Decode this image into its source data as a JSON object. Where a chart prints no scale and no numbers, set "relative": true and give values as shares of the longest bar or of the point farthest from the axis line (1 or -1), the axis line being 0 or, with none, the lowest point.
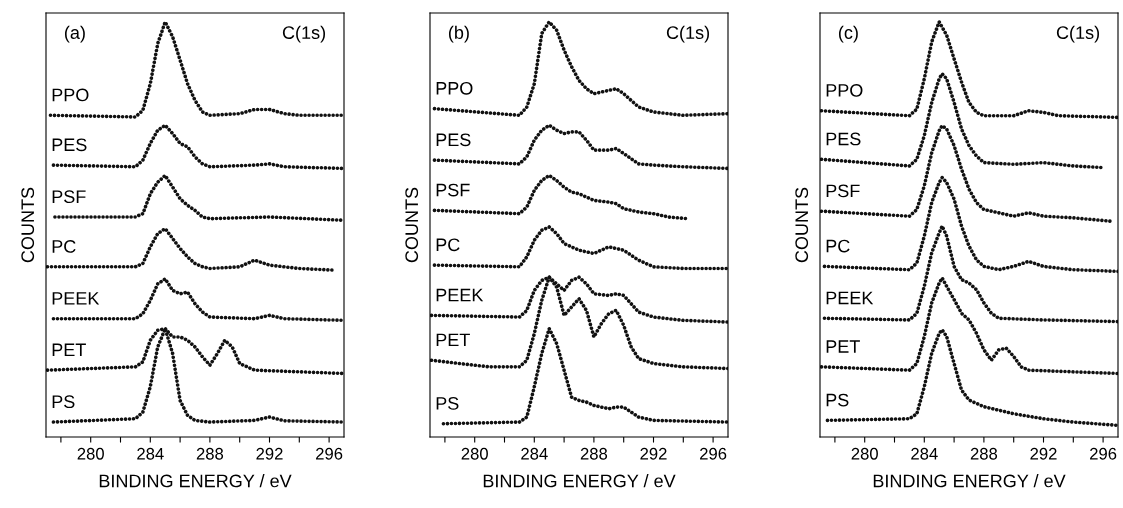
{
  "chart_data": [
    {
      "type": "line",
      "relative": true,
      "xlabel": "BINDING ENERGY / eV",
      "ylabel": "COUNTS",
      "annotations": [
        "(a)",
        "C(1s)"
      ],
      "xlim": [
        277,
        297
      ],
      "xticks": [
        {
          "value": 278,
          "label": null
        },
        280,
        {
          "value": 282,
          "label": null
        },
        284,
        {
          "value": 286,
          "label": null
        },
        288,
        {
          "value": 290,
          "label": null
        },
        292,
        {
          "value": 294,
          "label": null
        },
        296
      ],
      "line_style": "dotted",
      "legend": false,
      "grid": false,
      "tick_labels": "x",
      "series": [
        {
          "name": "PPO",
          "color": "#111111",
          "x": [
            277.3,
            283,
            283.5,
            284,
            284.5,
            285,
            285.5,
            286,
            286.5,
            287,
            287.5,
            288,
            290,
            291,
            292,
            293,
            294,
            297
          ],
          "values": [
            0.775,
            0.771,
            0.787,
            0.851,
            0.948,
            1.0,
            0.964,
            0.908,
            0.851,
            0.811,
            0.783,
            0.775,
            0.779,
            0.789,
            0.789,
            0.779,
            0.775,
            0.775
          ]
        },
        {
          "name": "PES",
          "color": "#111111",
          "x": [
            277.5,
            283,
            283.5,
            284,
            284.5,
            285,
            285.5,
            286,
            286.5,
            287,
            287.5,
            288,
            291,
            292,
            293,
            297
          ],
          "values": [
            0.655,
            0.651,
            0.667,
            0.707,
            0.739,
            0.751,
            0.731,
            0.707,
            0.699,
            0.675,
            0.658,
            0.651,
            0.655,
            0.658,
            0.651,
            0.647
          ]
        },
        {
          "name": "PSF",
          "color": "#111111",
          "x": [
            277.6,
            283,
            283.5,
            284,
            284.5,
            285,
            285.5,
            286,
            286.5,
            287,
            287.5,
            288,
            292,
            297
          ],
          "values": [
            0.53,
            0.53,
            0.538,
            0.586,
            0.614,
            0.63,
            0.602,
            0.574,
            0.558,
            0.546,
            0.53,
            0.526,
            0.53,
            0.522
          ]
        },
        {
          "name": "PC",
          "color": "#111111",
          "x": [
            277.1,
            283,
            283.5,
            284,
            284.5,
            285,
            285.5,
            286,
            286.5,
            287,
            287.5,
            288,
            290,
            291,
            292,
            294,
            296.3
          ],
          "values": [
            0.41,
            0.41,
            0.418,
            0.458,
            0.49,
            0.502,
            0.478,
            0.454,
            0.434,
            0.418,
            0.41,
            0.406,
            0.41,
            0.426,
            0.414,
            0.406,
            0.402
          ]
        },
        {
          "name": "PEEK",
          "color": "#111111",
          "x": [
            277.5,
            283,
            283.5,
            284,
            284.5,
            285,
            285.5,
            286,
            286.5,
            287,
            287.5,
            288,
            291,
            292,
            293,
            297
          ],
          "values": [
            0.285,
            0.285,
            0.297,
            0.329,
            0.369,
            0.381,
            0.353,
            0.345,
            0.349,
            0.321,
            0.301,
            0.289,
            0.285,
            0.293,
            0.285,
            0.281
          ]
        },
        {
          "name": "PET",
          "color": "#111111",
          "x": [
            277.1,
            283,
            283.5,
            284,
            284.5,
            285,
            285.5,
            286,
            286.5,
            287,
            287.5,
            288,
            288.5,
            289,
            289.5,
            290,
            291,
            294,
            297
          ],
          "values": [
            0.161,
            0.169,
            0.181,
            0.233,
            0.257,
            0.261,
            0.241,
            0.241,
            0.233,
            0.217,
            0.193,
            0.173,
            0.201,
            0.233,
            0.217,
            0.177,
            0.161,
            0.157,
            0.153
          ]
        },
        {
          "name": "PS",
          "color": "#111111",
          "x": [
            277.5,
            283,
            283.5,
            284,
            284.5,
            285,
            285.5,
            286,
            286.5,
            287,
            288,
            291,
            292,
            293,
            297
          ],
          "values": [
            0.036,
            0.044,
            0.06,
            0.121,
            0.217,
            0.261,
            0.201,
            0.088,
            0.052,
            0.04,
            0.036,
            0.04,
            0.048,
            0.039,
            0.036
          ]
        }
      ]
    },
    {
      "type": "line",
      "relative": true,
      "xlabel": "BINDING ENERGY / eV",
      "ylabel": "COUNTS",
      "annotations": [
        "(b)",
        "C(1s)"
      ],
      "xlim": [
        277,
        297
      ],
      "xticks": [
        {
          "value": 278,
          "label": null
        },
        280,
        {
          "value": 282,
          "label": null
        },
        284,
        {
          "value": 286,
          "label": null
        },
        288,
        {
          "value": 290,
          "label": null
        },
        292,
        {
          "value": 294,
          "label": null
        },
        296
      ],
      "line_style": "dotted",
      "legend": false,
      "grid": false,
      "tick_labels": "x",
      "series": [
        {
          "name": "PPO",
          "color": "#111111",
          "x": [
            277.3,
            283,
            283.5,
            284,
            284.5,
            285,
            285.5,
            286,
            286.5,
            287,
            287.5,
            288,
            289,
            289.5,
            290,
            290.5,
            291,
            292,
            294,
            297
          ],
          "values": [
            0.791,
            0.775,
            0.795,
            0.851,
            0.972,
            1.0,
            0.98,
            0.932,
            0.892,
            0.859,
            0.839,
            0.827,
            0.835,
            0.839,
            0.827,
            0.811,
            0.795,
            0.783,
            0.775,
            0.779
          ]
        },
        {
          "name": "PES",
          "color": "#111111",
          "x": [
            277.3,
            283,
            283.5,
            284,
            284.5,
            285,
            285.5,
            286,
            286.5,
            287,
            287.5,
            288,
            289,
            289.5,
            290,
            291,
            292,
            294,
            297
          ],
          "values": [
            0.667,
            0.658,
            0.675,
            0.715,
            0.739,
            0.751,
            0.739,
            0.731,
            0.735,
            0.735,
            0.715,
            0.691,
            0.691,
            0.695,
            0.683,
            0.658,
            0.655,
            0.651,
            0.647
          ]
        },
        {
          "name": "PSF",
          "color": "#111111",
          "x": [
            277.3,
            283,
            283.5,
            284,
            284.5,
            285,
            285.5,
            286,
            286.5,
            287,
            287.5,
            288,
            289,
            289.5,
            290,
            291,
            292,
            293,
            294.3
          ],
          "values": [
            0.546,
            0.538,
            0.554,
            0.594,
            0.618,
            0.63,
            0.618,
            0.602,
            0.59,
            0.586,
            0.578,
            0.57,
            0.566,
            0.562,
            0.55,
            0.542,
            0.538,
            0.53,
            0.526
          ]
        },
        {
          "name": "PC",
          "color": "#111111",
          "x": [
            277.3,
            283,
            283.5,
            284,
            284.5,
            285,
            285.5,
            286,
            286.5,
            287,
            288,
            289,
            290,
            291,
            292,
            294,
            297
          ],
          "values": [
            0.414,
            0.41,
            0.434,
            0.474,
            0.498,
            0.506,
            0.49,
            0.466,
            0.458,
            0.45,
            0.442,
            0.458,
            0.45,
            0.426,
            0.41,
            0.406,
            0.406
          ]
        },
        {
          "name": "PEEK",
          "color": "#111111",
          "x": [
            277.1,
            283,
            283.5,
            284,
            284.5,
            285,
            285.5,
            286,
            286.5,
            287,
            287.5,
            288,
            289,
            289.5,
            290,
            290.5,
            291,
            292,
            294,
            297
          ],
          "values": [
            0.293,
            0.289,
            0.305,
            0.353,
            0.377,
            0.385,
            0.369,
            0.353,
            0.377,
            0.385,
            0.369,
            0.345,
            0.341,
            0.345,
            0.341,
            0.321,
            0.301,
            0.289,
            0.281,
            0.277
          ]
        },
        {
          "name": "PET",
          "color": "#111111",
          "x": [
            277.1,
            279,
            281,
            283,
            283.5,
            284,
            284.5,
            285,
            285.5,
            286,
            286.5,
            287,
            287.5,
            288,
            288.5,
            289,
            289.5,
            290,
            290.5,
            291,
            292,
            294,
            297
          ],
          "values": [
            0.185,
            0.177,
            0.169,
            0.169,
            0.185,
            0.249,
            0.329,
            0.385,
            0.361,
            0.293,
            0.313,
            0.333,
            0.305,
            0.241,
            0.273,
            0.297,
            0.305,
            0.269,
            0.217,
            0.189,
            0.177,
            0.169,
            0.165
          ]
        },
        {
          "name": "PS",
          "color": "#111111",
          "x": [
            277.9,
            283,
            283.5,
            284,
            284.5,
            285,
            285.5,
            286,
            286.5,
            287,
            287.5,
            288,
            289,
            289.5,
            290,
            291,
            292,
            297
          ],
          "values": [
            0.032,
            0.036,
            0.048,
            0.121,
            0.201,
            0.261,
            0.225,
            0.161,
            0.096,
            0.088,
            0.084,
            0.076,
            0.068,
            0.072,
            0.072,
            0.048,
            0.04,
            0.036
          ]
        }
      ]
    },
    {
      "type": "line",
      "relative": true,
      "xlabel": "BINDING ENERGY / eV",
      "ylabel": "COUNTS",
      "annotations": [
        "(c)",
        "C(1s)"
      ],
      "xlim": [
        277,
        297
      ],
      "xticks": [
        {
          "value": 278,
          "label": null
        },
        280,
        {
          "value": 282,
          "label": null
        },
        284,
        {
          "value": 286,
          "label": null
        },
        288,
        {
          "value": 290,
          "label": null
        },
        292,
        {
          "value": 294,
          "label": null
        },
        296
      ],
      "line_style": "dotted",
      "legend": false,
      "grid": false,
      "tick_labels": "x",
      "series": [
        {
          "name": "PPO",
          "color": "#111111",
          "x": [
            277.1,
            283,
            283.5,
            284,
            284.5,
            285,
            285.5,
            286,
            286.5,
            287,
            287.5,
            288,
            290,
            291,
            292,
            293,
            297
          ],
          "values": [
            0.786,
            0.774,
            0.79,
            0.863,
            0.952,
            1.0,
            0.968,
            0.911,
            0.855,
            0.806,
            0.782,
            0.774,
            0.774,
            0.786,
            0.782,
            0.774,
            0.77
          ]
        },
        {
          "name": "PES",
          "color": "#111111",
          "x": [
            277.1,
            283,
            283.5,
            284,
            284.5,
            285,
            285.2,
            285.5,
            286,
            286.5,
            287,
            287.5,
            288,
            290,
            292,
            294,
            296
          ],
          "values": [
            0.669,
            0.653,
            0.669,
            0.726,
            0.806,
            0.863,
            0.875,
            0.863,
            0.806,
            0.742,
            0.702,
            0.677,
            0.661,
            0.657,
            0.661,
            0.653,
            0.649
          ]
        },
        {
          "name": "PSF",
          "color": "#111111",
          "x": [
            277.1,
            283,
            283.5,
            284,
            284.5,
            285,
            285.2,
            285.5,
            286,
            286.5,
            287,
            287.5,
            288,
            290,
            291,
            292,
            294,
            296.5
          ],
          "values": [
            0.544,
            0.532,
            0.548,
            0.605,
            0.685,
            0.738,
            0.75,
            0.742,
            0.702,
            0.645,
            0.597,
            0.565,
            0.548,
            0.532,
            0.54,
            0.532,
            0.528,
            0.52
          ]
        },
        {
          "name": "PC",
          "color": "#111111",
          "x": [
            277.3,
            283,
            283.5,
            284,
            284.5,
            285,
            285.2,
            285.5,
            286,
            286.5,
            287,
            287.5,
            288,
            289,
            290,
            291,
            292,
            294,
            297
          ],
          "values": [
            0.411,
            0.403,
            0.419,
            0.484,
            0.565,
            0.613,
            0.625,
            0.613,
            0.573,
            0.508,
            0.46,
            0.427,
            0.411,
            0.403,
            0.411,
            0.423,
            0.411,
            0.403,
            0.399
          ]
        },
        {
          "name": "PEEK",
          "color": "#111111",
          "x": [
            277.3,
            283,
            283.5,
            284,
            284.5,
            285,
            285.2,
            285.5,
            286,
            286.5,
            287,
            287.5,
            288,
            288.5,
            289,
            292,
            297
          ],
          "values": [
            0.286,
            0.282,
            0.298,
            0.363,
            0.444,
            0.492,
            0.508,
            0.484,
            0.411,
            0.379,
            0.371,
            0.355,
            0.323,
            0.298,
            0.286,
            0.282,
            0.278
          ]
        },
        {
          "name": "PET",
          "color": "#111111",
          "x": [
            277.1,
            283,
            283.5,
            284,
            284.5,
            285,
            285.2,
            285.5,
            286,
            286.5,
            287,
            287.5,
            288,
            288.5,
            289,
            289.5,
            290,
            290.5,
            291,
            294,
            297
          ],
          "values": [
            0.169,
            0.161,
            0.177,
            0.242,
            0.323,
            0.371,
            0.383,
            0.363,
            0.331,
            0.298,
            0.282,
            0.25,
            0.21,
            0.185,
            0.21,
            0.214,
            0.194,
            0.169,
            0.161,
            0.157,
            0.153
          ]
        },
        {
          "name": "PS",
          "color": "#111111",
          "x": [
            277.5,
            283,
            283.5,
            284,
            284.5,
            285,
            285.2,
            285.5,
            286,
            286.5,
            287,
            288,
            290,
            292,
            294,
            297
          ],
          "values": [
            0.04,
            0.044,
            0.056,
            0.121,
            0.202,
            0.25,
            0.258,
            0.242,
            0.177,
            0.113,
            0.089,
            0.073,
            0.056,
            0.044,
            0.036,
            0.028
          ]
        }
      ]
    }
  ]
}
